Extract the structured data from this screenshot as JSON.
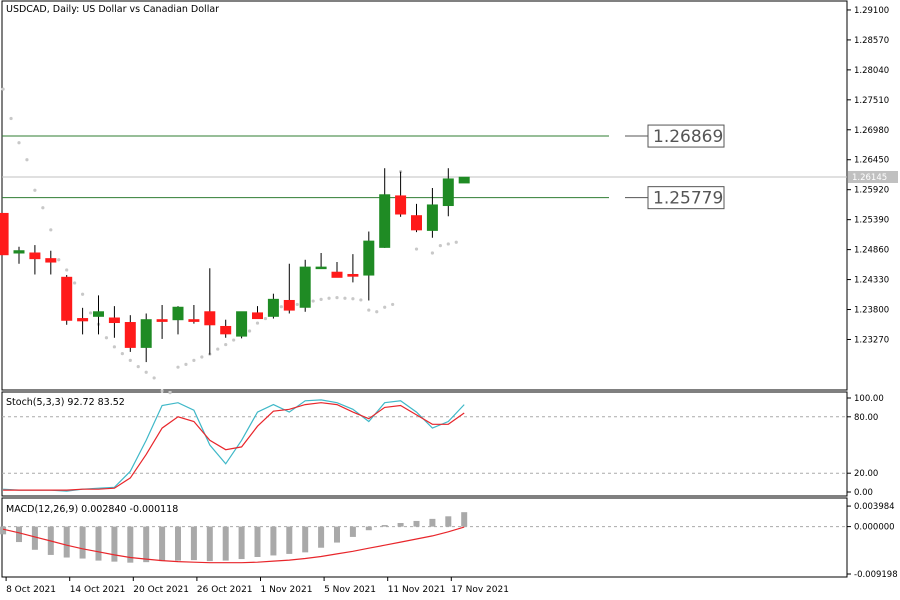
{
  "header": {
    "main_title": "USDCAD, Daily:  US Dollar vs Canadian Dollar",
    "stoch_title": "Stoch(5,3,3) 92.72 83.52",
    "macd_title": "MACD(12,26,9) 0.002840 -0.000118"
  },
  "colors": {
    "bull": "#1f8b24",
    "bear": "#ff1a1a",
    "hline": "#2f7d32",
    "price_line": "#c0c0c0",
    "sar": "#c8c8c8",
    "stoch_main": "#3fb8c8",
    "stoch_signal": "#e8262b",
    "macd_hist": "#a9a9a9",
    "macd_signal": "#e8262b"
  },
  "chart_data": {
    "type": "candlestick",
    "price_ticks": [
      "1.29100",
      "1.28570",
      "1.28040",
      "1.27510",
      "1.26980",
      "1.26450",
      "1.25920",
      "1.25390",
      "1.24860",
      "1.24330",
      "1.23800",
      "1.23270"
    ],
    "ylim": [
      1.2273,
      1.2917
    ],
    "current_price": "1.26145",
    "current_price_value": 1.26145,
    "horizontal_lines": [
      {
        "label": "1.26869",
        "value": 1.26869
      },
      {
        "label": "1.25779",
        "value": 1.25779
      }
    ],
    "x_labels": [
      {
        "label": "8 Oct 2021",
        "index": 0
      },
      {
        "label": "14 Oct 2021",
        "index": 4
      },
      {
        "label": "20 Oct 2021",
        "index": 8
      },
      {
        "label": "26 Oct 2021",
        "index": 12
      },
      {
        "label": "1 Nov 2021",
        "index": 16
      },
      {
        "label": "5 Nov 2021",
        "index": 20
      },
      {
        "label": "11 Nov 2021",
        "index": 24
      },
      {
        "label": "17 Nov 2021",
        "index": 28
      }
    ],
    "candles": [
      [
        -1,
        1.255,
        1.255,
        1.2477,
        1.2477
      ],
      [
        0,
        1.248,
        1.2491,
        1.2461,
        1.2484
      ],
      [
        1,
        1.248,
        1.2494,
        1.2442,
        1.247
      ],
      [
        2,
        1.247,
        1.2484,
        1.2442,
        1.2464
      ],
      [
        3,
        1.2437,
        1.2441,
        1.2353,
        1.2361
      ],
      [
        4,
        1.2364,
        1.2383,
        1.2336,
        1.236
      ],
      [
        5,
        1.2368,
        1.2405,
        1.2336,
        1.2376
      ],
      [
        6,
        1.2365,
        1.2386,
        1.233,
        1.2357
      ],
      [
        7,
        1.2357,
        1.237,
        1.2305,
        1.2313
      ],
      [
        8,
        1.2313,
        1.2373,
        1.2287,
        1.2362
      ],
      [
        9,
        1.2362,
        1.2388,
        1.2328,
        1.2359
      ],
      [
        10,
        1.2362,
        1.2386,
        1.2336,
        1.2384
      ],
      [
        11,
        1.2362,
        1.2388,
        1.2355,
        1.2359
      ],
      [
        12,
        1.2376,
        1.2453,
        1.23,
        1.2353
      ],
      [
        13,
        1.235,
        1.2362,
        1.233,
        1.2337
      ],
      [
        14,
        1.2333,
        1.2376,
        1.2329,
        1.2376
      ],
      [
        15,
        1.2374,
        1.2386,
        1.2364,
        1.2364
      ],
      [
        16,
        1.2368,
        1.2408,
        1.2364,
        1.2398
      ],
      [
        17,
        1.2396,
        1.2461,
        1.2373,
        1.2379
      ],
      [
        18,
        1.2384,
        1.2468,
        1.2376,
        1.2455
      ],
      [
        19,
        1.2455,
        1.248,
        1.2455,
        1.2455
      ],
      [
        20,
        1.2446,
        1.2464,
        1.2438,
        1.2437
      ],
      [
        21,
        1.2442,
        1.2478,
        1.2428,
        1.2439
      ],
      [
        22,
        1.2441,
        1.2518,
        1.2396,
        1.2501
      ],
      [
        23,
        1.249,
        1.263,
        1.2489,
        1.2583
      ],
      [
        24,
        1.2581,
        1.2624,
        1.2544,
        1.2549
      ],
      [
        25,
        1.2546,
        1.2567,
        1.2517,
        1.2521
      ],
      [
        26,
        1.252,
        1.2595,
        1.2507,
        1.2565
      ],
      [
        27,
        1.2564,
        1.263,
        1.2545,
        1.2611
      ],
      [
        28,
        1.2604,
        1.2614,
        1.2604,
        1.2614
      ]
    ],
    "sar_dots": [
      [
        -1,
        1.277
      ],
      [
        -0.5,
        1.2718
      ],
      [
        0.0,
        1.2675
      ],
      [
        0.5,
        1.2645
      ],
      [
        1,
        1.2591
      ],
      [
        1.5,
        1.256
      ],
      [
        2,
        1.2521
      ],
      [
        2.5,
        1.2468
      ],
      [
        3,
        1.245
      ],
      [
        3.5,
        1.2427
      ],
      [
        4,
        1.2407
      ],
      [
        4.5,
        1.2374
      ],
      [
        5,
        1.2354
      ],
      [
        5.5,
        1.233
      ],
      [
        6,
        1.2314
      ],
      [
        6.5,
        1.2302
      ],
      [
        7,
        1.229
      ],
      [
        7.5,
        1.2279
      ],
      [
        8,
        1.2269
      ],
      [
        8.5,
        1.2259
      ],
      [
        9,
        1.2236
      ],
      [
        9.5,
        1.2233
      ],
      [
        10,
        1.2278
      ],
      [
        10.5,
        1.2283
      ],
      [
        11,
        1.229
      ],
      [
        11.5,
        1.2296
      ],
      [
        12,
        1.2301
      ],
      [
        12.5,
        1.231
      ],
      [
        13,
        1.2318
      ],
      [
        13.5,
        1.2326
      ],
      [
        14,
        1.2335
      ],
      [
        14.5,
        1.2342
      ],
      [
        15,
        1.2356
      ],
      [
        15.5,
        1.2364
      ],
      [
        16,
        1.2373
      ],
      [
        16.5,
        1.2385
      ],
      [
        17,
        1.2382
      ],
      [
        17.5,
        1.2389
      ],
      [
        18,
        1.2394
      ],
      [
        18.5,
        1.2395
      ],
      [
        19,
        1.2398
      ],
      [
        19.5,
        1.24
      ],
      [
        20,
        1.2401
      ],
      [
        20.5,
        1.24
      ],
      [
        21,
        1.2399
      ],
      [
        21.5,
        1.2397
      ],
      [
        22,
        1.2379
      ],
      [
        22.5,
        1.2376
      ],
      [
        23,
        1.2384
      ],
      [
        23.5,
        1.2389
      ],
      [
        24,
        1.2624
      ],
      [
        25,
        1.2487
      ],
      [
        26,
        1.248
      ],
      [
        26.5,
        1.2493
      ],
      [
        27,
        1.2496
      ],
      [
        27.5,
        1.2499
      ]
    ],
    "stoch": {
      "ticks": [
        "100.00",
        "80.00",
        "20.00",
        "0.00"
      ],
      "levels": [
        80,
        20
      ],
      "main": [
        3,
        2,
        2,
        2,
        1,
        3,
        4,
        5,
        22,
        55,
        92,
        95,
        87,
        50,
        30,
        55,
        85,
        93,
        85,
        97,
        98,
        95,
        88,
        75,
        95,
        97,
        85,
        68,
        75,
        93
      ],
      "signal": [
        2,
        2,
        2,
        2,
        2,
        3,
        3,
        4,
        15,
        40,
        68,
        80,
        75,
        55,
        45,
        48,
        70,
        86,
        88,
        93,
        95,
        93,
        85,
        78,
        90,
        92,
        82,
        72,
        72,
        84
      ]
    },
    "macd": {
      "ticks": [
        "0.003984",
        "0.000000",
        "-0.009198"
      ],
      "ylim": [
        -0.0092,
        0.004
      ],
      "hist": [
        -0.0015,
        -0.003,
        -0.0045,
        -0.0055,
        -0.006,
        -0.0062,
        -0.0066,
        -0.0068,
        -0.007,
        -0.0069,
        -0.0067,
        -0.0066,
        -0.0065,
        -0.0067,
        -0.0066,
        -0.0063,
        -0.0059,
        -0.0056,
        -0.0053,
        -0.005,
        -0.0041,
        -0.0031,
        -0.002,
        -0.0007,
        0.0003,
        0.0007,
        0.0011,
        0.0015,
        0.002,
        0.0028
      ],
      "signal": [
        -0.0005,
        -0.0012,
        -0.002,
        -0.0028,
        -0.0036,
        -0.0043,
        -0.0049,
        -0.0055,
        -0.006,
        -0.0063,
        -0.0066,
        -0.0068,
        -0.0069,
        -0.007,
        -0.007,
        -0.007,
        -0.0069,
        -0.0067,
        -0.0065,
        -0.0062,
        -0.0058,
        -0.0053,
        -0.0048,
        -0.0042,
        -0.0036,
        -0.003,
        -0.0024,
        -0.0018,
        -0.001,
        -0.0001
      ]
    }
  }
}
